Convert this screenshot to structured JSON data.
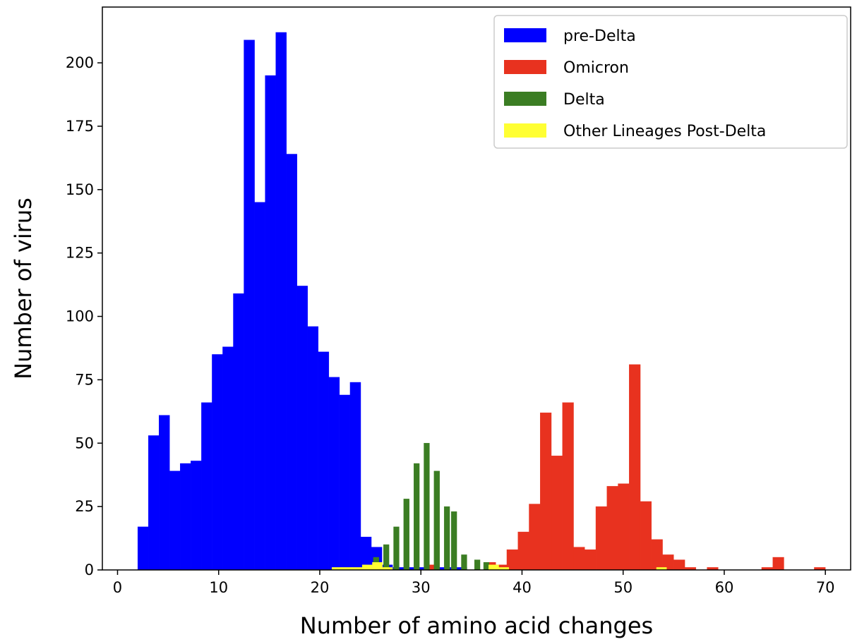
{
  "chart_data": {
    "type": "bar",
    "xlabel": "Number of amino acid changes",
    "ylabel": "Number of virus",
    "xlim": [
      -1.5,
      72.5
    ],
    "ylim": [
      0,
      222
    ],
    "x_ticks": [
      0,
      10,
      20,
      30,
      40,
      50,
      60,
      70
    ],
    "y_ticks": [
      0,
      25,
      50,
      75,
      100,
      125,
      150,
      175,
      200
    ],
    "grid": false,
    "legend_position": "top-right",
    "series": [
      {
        "name": "pre-Delta",
        "color": "#0000ff",
        "bin_width": 1.05,
        "bins": [
          {
            "x": 2.0,
            "y": 17
          },
          {
            "x": 3.05,
            "y": 53
          },
          {
            "x": 4.1,
            "y": 61
          },
          {
            "x": 5.15,
            "y": 39
          },
          {
            "x": 6.2,
            "y": 42
          },
          {
            "x": 7.25,
            "y": 43
          },
          {
            "x": 8.3,
            "y": 66
          },
          {
            "x": 9.35,
            "y": 85
          },
          {
            "x": 10.4,
            "y": 88
          },
          {
            "x": 11.45,
            "y": 109
          },
          {
            "x": 12.5,
            "y": 209
          },
          {
            "x": 13.55,
            "y": 145
          },
          {
            "x": 14.6,
            "y": 195
          },
          {
            "x": 15.65,
            "y": 212
          },
          {
            "x": 16.7,
            "y": 164
          },
          {
            "x": 17.75,
            "y": 112
          },
          {
            "x": 18.8,
            "y": 96
          },
          {
            "x": 19.85,
            "y": 86
          },
          {
            "x": 20.9,
            "y": 76
          },
          {
            "x": 21.95,
            "y": 69
          },
          {
            "x": 23.0,
            "y": 74
          },
          {
            "x": 24.05,
            "y": 13
          },
          {
            "x": 25.1,
            "y": 9
          },
          {
            "x": 26.15,
            "y": 2
          },
          {
            "x": 27.2,
            "y": 1
          },
          {
            "x": 28.25,
            "y": 1
          },
          {
            "x": 29.3,
            "y": 1
          },
          {
            "x": 30.35,
            "y": 1
          },
          {
            "x": 31.4,
            "y": 1
          },
          {
            "x": 32.45,
            "y": 1
          },
          {
            "x": 33.5,
            "y": 1
          }
        ]
      },
      {
        "name": "Omicron",
        "color": "#e8321f",
        "bin_width": 1.1,
        "bins": [
          {
            "x": 30.5,
            "y": 2
          },
          {
            "x": 36.3,
            "y": 3
          },
          {
            "x": 37.4,
            "y": 2
          },
          {
            "x": 38.5,
            "y": 8
          },
          {
            "x": 39.6,
            "y": 15
          },
          {
            "x": 40.7,
            "y": 26
          },
          {
            "x": 41.8,
            "y": 62
          },
          {
            "x": 42.9,
            "y": 45
          },
          {
            "x": 44.0,
            "y": 66
          },
          {
            "x": 45.1,
            "y": 9
          },
          {
            "x": 46.2,
            "y": 8
          },
          {
            "x": 47.3,
            "y": 25
          },
          {
            "x": 48.4,
            "y": 33
          },
          {
            "x": 49.5,
            "y": 34
          },
          {
            "x": 50.6,
            "y": 81
          },
          {
            "x": 51.7,
            "y": 27
          },
          {
            "x": 52.8,
            "y": 12
          },
          {
            "x": 53.9,
            "y": 6
          },
          {
            "x": 55.0,
            "y": 4
          },
          {
            "x": 56.1,
            "y": 1
          },
          {
            "x": 58.3,
            "y": 1
          },
          {
            "x": 63.7,
            "y": 1
          },
          {
            "x": 64.8,
            "y": 5
          },
          {
            "x": 68.9,
            "y": 1
          }
        ]
      },
      {
        "name": "Delta",
        "color": "#3b7d23",
        "bin_width": 0.55,
        "bins": [
          {
            "x": 24.2,
            "y": 2
          },
          {
            "x": 25.3,
            "y": 5
          },
          {
            "x": 26.3,
            "y": 10
          },
          {
            "x": 27.3,
            "y": 17
          },
          {
            "x": 28.3,
            "y": 28
          },
          {
            "x": 29.3,
            "y": 42
          },
          {
            "x": 30.3,
            "y": 50
          },
          {
            "x": 31.3,
            "y": 39
          },
          {
            "x": 32.3,
            "y": 25
          },
          {
            "x": 33.0,
            "y": 23
          },
          {
            "x": 34.0,
            "y": 6
          },
          {
            "x": 35.3,
            "y": 4
          },
          {
            "x": 36.2,
            "y": 3
          },
          {
            "x": 37.3,
            "y": 1
          }
        ]
      },
      {
        "name": "Other Lineages Post-Delta",
        "color": "#ffff33",
        "bin_width": 1.0,
        "bins": [
          {
            "x": 21.2,
            "y": 1
          },
          {
            "x": 22.2,
            "y": 1
          },
          {
            "x": 23.2,
            "y": 1
          },
          {
            "x": 24.2,
            "y": 2
          },
          {
            "x": 25.2,
            "y": 3
          },
          {
            "x": 26.2,
            "y": 1
          },
          {
            "x": 36.7,
            "y": 2
          },
          {
            "x": 37.7,
            "y": 1
          },
          {
            "x": 53.3,
            "y": 1
          }
        ]
      }
    ]
  }
}
